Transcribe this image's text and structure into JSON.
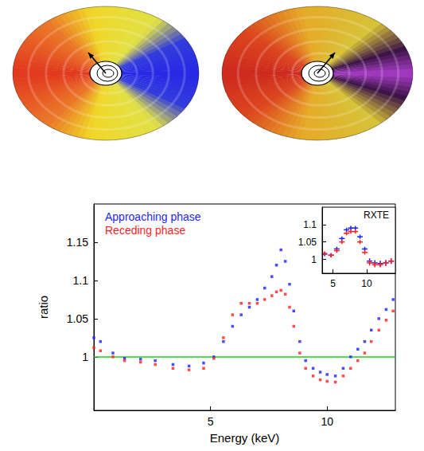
{
  "chart_data": [
    {
      "type": "scatter",
      "x_label": "Energy (keV)",
      "y_label": "ratio",
      "log": "x",
      "xlim": [
        2.5,
        15
      ],
      "xticks": [
        5,
        10
      ],
      "ylim": [
        0.93,
        1.2
      ],
      "yticks": [
        1,
        1.05,
        1.1,
        1.15
      ],
      "legend": "upper left",
      "marker": "square",
      "reference_line": {
        "y": 1,
        "color": "#22cc22"
      },
      "x": [
        2.5,
        2.6,
        2.8,
        3.0,
        3.3,
        3.6,
        4.0,
        4.4,
        4.8,
        5.1,
        5.4,
        5.7,
        6.0,
        6.3,
        6.6,
        6.9,
        7.2,
        7.4,
        7.6,
        7.8,
        8.0,
        8.2,
        8.5,
        8.8,
        9.2,
        9.6,
        10.0,
        10.5,
        11.0,
        11.5,
        12.0,
        12.5,
        13.0,
        13.6,
        14.2,
        14.8
      ],
      "series": [
        {
          "name": "Approaching phase",
          "color": "#1f1fff",
          "values": [
            1.025,
            1.02,
            1.005,
            0.998,
            0.997,
            0.995,
            0.99,
            0.988,
            0.992,
            1.0,
            1.02,
            1.04,
            1.055,
            1.065,
            1.075,
            1.09,
            1.105,
            1.12,
            1.14,
            1.125,
            1.095,
            1.06,
            1.02,
            0.995,
            0.985,
            0.98,
            0.977,
            0.975,
            0.985,
            1.0,
            1.01,
            1.02,
            1.035,
            1.05,
            1.062,
            1.075
          ]
        },
        {
          "name": "Receding phase",
          "color": "#ff1f1f",
          "values": [
            1.012,
            1.008,
            1.0,
            0.995,
            0.993,
            0.99,
            0.985,
            0.983,
            0.985,
            0.998,
            1.025,
            1.055,
            1.07,
            1.07,
            1.07,
            1.075,
            1.08,
            1.085,
            1.087,
            1.082,
            1.065,
            1.04,
            1.005,
            0.985,
            0.975,
            0.97,
            0.968,
            0.967,
            0.975,
            0.985,
            0.995,
            1.005,
            1.02,
            1.035,
            1.048,
            1.06
          ]
        }
      ]
    },
    {
      "type": "scatter",
      "title": "RXTE",
      "log": "x",
      "xlim": [
        4,
        18
      ],
      "xticks": [
        5,
        10
      ],
      "ylim": [
        0.96,
        1.15
      ],
      "yticks": [
        1,
        1.05,
        1.1
      ],
      "marker": "dash",
      "x": [
        4.2,
        4.8,
        5.4,
        6.0,
        6.6,
        7.2,
        7.9,
        8.7,
        9.6,
        10.6,
        11.8,
        13.2,
        14.8,
        16.5
      ],
      "series": [
        {
          "color": "#1f1fff",
          "values": [
            1.015,
            1.012,
            1.03,
            1.06,
            1.085,
            1.09,
            1.09,
            1.065,
            1.03,
            0.995,
            0.99,
            0.988,
            0.99,
            0.995
          ],
          "errors": [
            0.006,
            0.006,
            0.006,
            0.006,
            0.006,
            0.006,
            0.006,
            0.006,
            0.006,
            0.008,
            0.008,
            0.008,
            0.008,
            0.008
          ]
        },
        {
          "color": "#ff1f1f",
          "values": [
            1.017,
            1.012,
            1.025,
            1.05,
            1.075,
            1.08,
            1.08,
            1.05,
            1.02,
            0.99,
            0.985,
            0.985,
            0.99,
            0.995
          ],
          "errors": [
            0.006,
            0.006,
            0.006,
            0.006,
            0.006,
            0.006,
            0.006,
            0.006,
            0.006,
            0.008,
            0.008,
            0.008,
            0.008,
            0.008
          ]
        }
      ]
    }
  ]
}
